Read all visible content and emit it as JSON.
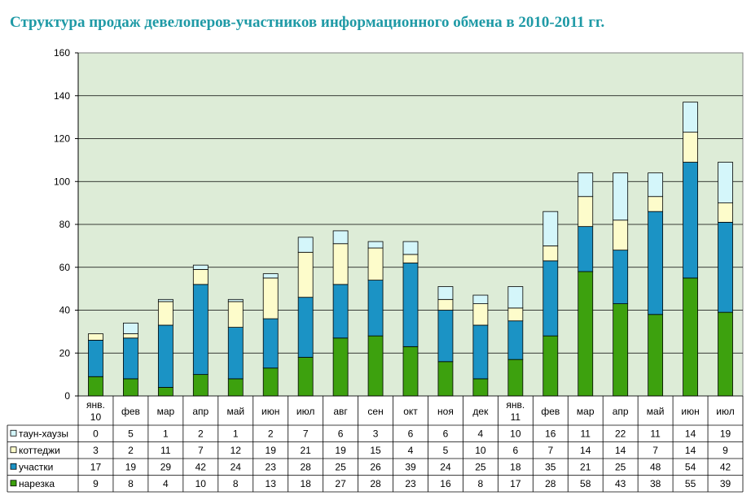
{
  "chart_data": {
    "type": "bar",
    "stacked": true,
    "title": "Структура продаж девелоперов-участников информационного обмена в 2010-2011 гг.",
    "categories": [
      [
        "янв.",
        "10"
      ],
      [
        "фев"
      ],
      [
        "мар"
      ],
      [
        "апр"
      ],
      [
        "май"
      ],
      [
        "июн"
      ],
      [
        "июл"
      ],
      [
        "авг"
      ],
      [
        "сен"
      ],
      [
        "окт"
      ],
      [
        "ноя"
      ],
      [
        "дек"
      ],
      [
        "янв.",
        "11"
      ],
      [
        "фев"
      ],
      [
        "мар"
      ],
      [
        "апр"
      ],
      [
        "май"
      ],
      [
        "июн"
      ],
      [
        "июл"
      ]
    ],
    "series": [
      {
        "name": "нарезка",
        "color": "#3da10e",
        "values": [
          9,
          8,
          4,
          10,
          8,
          13,
          18,
          27,
          28,
          23,
          16,
          8,
          17,
          28,
          58,
          43,
          38,
          55,
          39
        ]
      },
      {
        "name": "участки",
        "color": "#1b93c5",
        "values": [
          17,
          19,
          29,
          42,
          24,
          23,
          28,
          25,
          26,
          39,
          24,
          25,
          18,
          35,
          21,
          25,
          48,
          54,
          42
        ]
      },
      {
        "name": "коттеджи",
        "color": "#fdfccb",
        "values": [
          3,
          2,
          11,
          7,
          12,
          19,
          21,
          19,
          15,
          4,
          5,
          10,
          6,
          7,
          14,
          14,
          7,
          14,
          9
        ]
      },
      {
        "name": "таун-хаузы",
        "color": "#d4f6fa",
        "values": [
          0,
          5,
          1,
          2,
          1,
          2,
          7,
          6,
          3,
          6,
          6,
          4,
          10,
          16,
          11,
          22,
          11,
          14,
          19
        ]
      }
    ],
    "ylim": [
      0,
      160
    ],
    "yticks": [
      0,
      20,
      40,
      60,
      80,
      100,
      120,
      140,
      160
    ],
    "grid": true,
    "legend": "data-table",
    "plot_background": "#ddecd7"
  }
}
